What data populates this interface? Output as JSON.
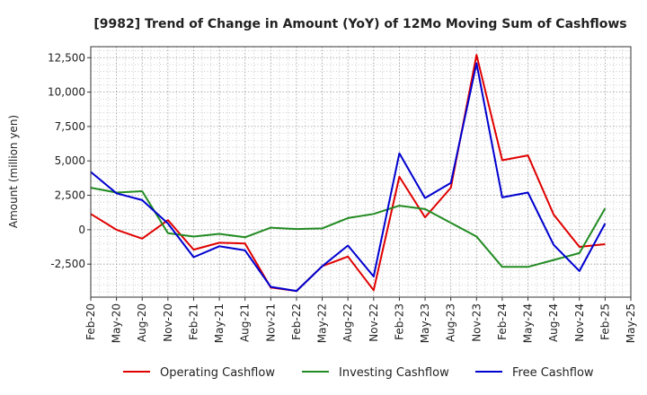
{
  "chart_data": {
    "type": "line",
    "title": "[9982]  Trend of Change in Amount (YoY) of 12Mo Moving Sum of Cashflows",
    "ylabel": "Amount (million yen)",
    "xlabel": "",
    "ylim": [
      -4900,
      13300
    ],
    "yticks": [
      -2500,
      0,
      2500,
      5000,
      7500,
      10000,
      12500
    ],
    "ytick_labels": [
      "-2,500",
      "0",
      "2,500",
      "5,000",
      "7,500",
      "10,000",
      "12,500"
    ],
    "categories": [
      "Feb-20",
      "May-20",
      "Aug-20",
      "Nov-20",
      "Feb-21",
      "May-21",
      "Aug-21",
      "Nov-21",
      "Feb-22",
      "May-22",
      "Aug-22",
      "Nov-22",
      "Feb-23",
      "May-23",
      "Aug-23",
      "Nov-23",
      "Feb-24",
      "May-24",
      "Aug-24",
      "Nov-24",
      "Feb-25",
      "May-25"
    ],
    "grid": true,
    "legend_position": "bottom",
    "series": [
      {
        "name": "Operating Cashflow",
        "color": "#e00000",
        "values": [
          1150,
          0,
          -650,
          700,
          -1450,
          -950,
          -1000,
          -4200,
          -4450,
          -2650,
          -1950,
          -4400,
          3850,
          900,
          3050,
          12700,
          5050,
          5400,
          1100,
          -1250,
          -1050,
          null
        ]
      },
      {
        "name": "Investing Cashflow",
        "color": "#228b22",
        "values": [
          3050,
          2700,
          2800,
          -250,
          -500,
          -300,
          -550,
          150,
          50,
          100,
          850,
          1150,
          1750,
          1500,
          500,
          -500,
          -2700,
          -2700,
          -2200,
          -1700,
          1550,
          null
        ]
      },
      {
        "name": "Free Cashflow",
        "color": "#0000d0",
        "values": [
          4200,
          2650,
          2150,
          450,
          -2000,
          -1200,
          -1500,
          -4150,
          -4450,
          -2650,
          -1150,
          -3400,
          5550,
          2300,
          3400,
          12100,
          2350,
          2700,
          -1100,
          -3000,
          450,
          null
        ]
      }
    ]
  }
}
